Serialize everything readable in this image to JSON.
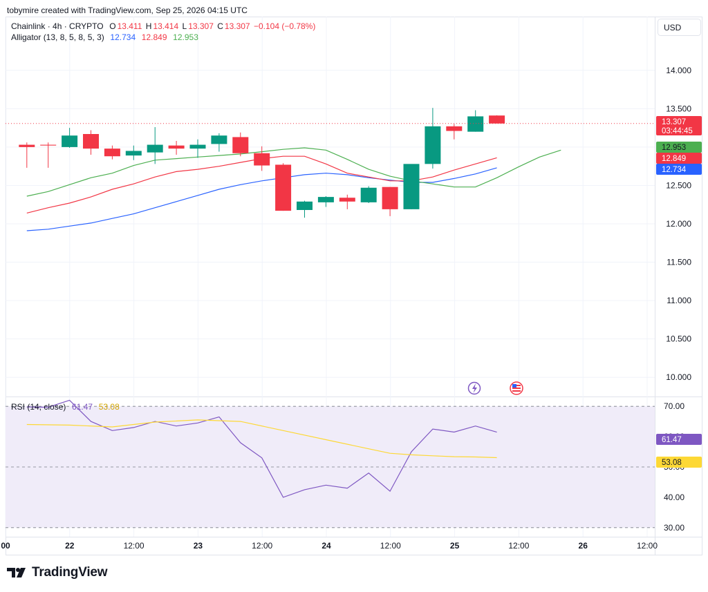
{
  "header": {
    "credit": "tobymire created with TradingView.com, Sep 25, 2026 04:15 UTC"
  },
  "legend": {
    "symbol": "Chainlink · 4h · CRYPTO",
    "o_label": "O",
    "o": "13.411",
    "h_label": "H",
    "h": "13.414",
    "l_label": "L",
    "l": "13.307",
    "c_label": "C",
    "c": "13.307",
    "change": "−0.104 (−0.78%)",
    "alligator_label": "Alligator (13, 8, 5, 8, 5, 3)",
    "jaw": "12.734",
    "teeth": "12.849",
    "lips": "12.953",
    "rsi_label": "RSI (14, close)",
    "rsi": "61.47",
    "rsi_ma": "53.08"
  },
  "currency": "USD",
  "price_tags": {
    "last": "13.307",
    "countdown": "03:44:45",
    "lips": "12.953",
    "teeth": "12.849",
    "jaw": "12.734",
    "rsi": "61.47",
    "rsi_ma": "53.08"
  },
  "colors": {
    "up": "#089981",
    "down": "#f23645",
    "jaw": "#2962ff",
    "teeth": "#f23645",
    "lips": "#4caf50",
    "rsi": "#7e57c2",
    "rsi_ma": "#fdd835",
    "rsi_band": "#f0ecf9"
  },
  "logo": {
    "text": "TradingView"
  },
  "chart_data": [
    {
      "type": "candlestick",
      "title": "Chainlink · 4h · CRYPTO",
      "ylim": [
        9.75,
        14.7
      ],
      "y_ticks": [
        "14.000",
        "13.500",
        "13.000",
        "12.500",
        "12.000",
        "11.500",
        "11.000",
        "10.500",
        "10.000"
      ],
      "x_ticks": [
        "00",
        "22",
        "12:00",
        "23",
        "12:00",
        "24",
        "12:00",
        "25",
        "12:00",
        "26",
        "12:00"
      ],
      "candles": [
        {
          "o": 13.03,
          "h": 13.06,
          "l": 12.73,
          "c": 13.0
        },
        {
          "o": 13.03,
          "h": 13.06,
          "l": 12.73,
          "c": 13.02
        },
        {
          "o": 13.0,
          "h": 13.25,
          "l": 12.99,
          "c": 13.15
        },
        {
          "o": 13.17,
          "h": 13.22,
          "l": 12.9,
          "c": 12.98
        },
        {
          "o": 12.98,
          "h": 13.02,
          "l": 12.84,
          "c": 12.88
        },
        {
          "o": 12.89,
          "h": 13.02,
          "l": 12.83,
          "c": 12.95
        },
        {
          "o": 12.93,
          "h": 13.26,
          "l": 12.78,
          "c": 13.03
        },
        {
          "o": 13.02,
          "h": 13.08,
          "l": 12.9,
          "c": 12.98
        },
        {
          "o": 12.98,
          "h": 13.1,
          "l": 12.86,
          "c": 13.03
        },
        {
          "o": 13.04,
          "h": 13.18,
          "l": 12.94,
          "c": 13.15
        },
        {
          "o": 13.13,
          "h": 13.19,
          "l": 12.88,
          "c": 12.92
        },
        {
          "o": 12.92,
          "h": 13.01,
          "l": 12.69,
          "c": 12.76
        },
        {
          "o": 12.77,
          "h": 12.79,
          "l": 12.17,
          "c": 12.17
        },
        {
          "o": 12.18,
          "h": 12.3,
          "l": 12.08,
          "c": 12.29
        },
        {
          "o": 12.28,
          "h": 12.36,
          "l": 12.22,
          "c": 12.35
        },
        {
          "o": 12.34,
          "h": 12.38,
          "l": 12.19,
          "c": 12.29
        },
        {
          "o": 12.28,
          "h": 12.49,
          "l": 12.27,
          "c": 12.47
        },
        {
          "o": 12.48,
          "h": 12.48,
          "l": 12.1,
          "c": 12.19
        },
        {
          "o": 12.19,
          "h": 12.77,
          "l": 12.19,
          "c": 12.78
        },
        {
          "o": 12.78,
          "h": 13.51,
          "l": 12.72,
          "c": 13.27
        },
        {
          "o": 13.27,
          "h": 13.3,
          "l": 13.1,
          "c": 13.21
        },
        {
          "o": 13.2,
          "h": 13.48,
          "l": 13.2,
          "c": 13.4
        },
        {
          "o": 13.411,
          "h": 13.414,
          "l": 13.307,
          "c": 13.307
        }
      ],
      "last_price": 13.307,
      "series": [
        {
          "name": "Jaw",
          "values": [
            [
              0,
              11.91
            ],
            [
              2,
              11.93
            ],
            [
              4,
              11.97
            ],
            [
              6,
              12.01
            ],
            [
              8,
              12.07
            ],
            [
              10,
              12.13
            ],
            [
              12,
              12.21
            ],
            [
              14,
              12.29
            ],
            [
              16,
              12.37
            ],
            [
              18,
              12.45
            ],
            [
              20,
              12.51
            ],
            [
              22,
              12.56
            ],
            [
              24,
              12.6
            ],
            [
              26,
              12.64
            ],
            [
              28,
              12.66
            ],
            [
              30,
              12.64
            ],
            [
              32,
              12.6
            ],
            [
              34,
              12.57
            ],
            [
              36,
              12.54
            ],
            [
              38,
              12.54
            ],
            [
              40,
              12.59
            ],
            [
              42,
              12.65
            ],
            [
              44,
              12.73
            ]
          ]
        },
        {
          "name": "Teeth",
          "values": [
            [
              0,
              12.14
            ],
            [
              2,
              12.21
            ],
            [
              4,
              12.27
            ],
            [
              6,
              12.35
            ],
            [
              8,
              12.45
            ],
            [
              10,
              12.52
            ],
            [
              12,
              12.61
            ],
            [
              14,
              12.68
            ],
            [
              16,
              12.71
            ],
            [
              18,
              12.75
            ],
            [
              20,
              12.8
            ],
            [
              22,
              12.85
            ],
            [
              24,
              12.88
            ],
            [
              26,
              12.88
            ],
            [
              28,
              12.78
            ],
            [
              30,
              12.66
            ],
            [
              32,
              12.61
            ],
            [
              34,
              12.56
            ],
            [
              36,
              12.56
            ],
            [
              38,
              12.61
            ],
            [
              40,
              12.7
            ],
            [
              42,
              12.78
            ],
            [
              44,
              12.86
            ]
          ]
        },
        {
          "name": "Lips",
          "values": [
            [
              0,
              12.36
            ],
            [
              2,
              12.42
            ],
            [
              4,
              12.51
            ],
            [
              6,
              12.6
            ],
            [
              8,
              12.66
            ],
            [
              10,
              12.76
            ],
            [
              12,
              12.83
            ],
            [
              14,
              12.85
            ],
            [
              16,
              12.87
            ],
            [
              18,
              12.89
            ],
            [
              20,
              12.91
            ],
            [
              22,
              12.94
            ],
            [
              24,
              12.97
            ],
            [
              26,
              12.99
            ],
            [
              28,
              12.96
            ],
            [
              30,
              12.84
            ],
            [
              32,
              12.71
            ],
            [
              34,
              12.62
            ],
            [
              36,
              12.56
            ],
            [
              38,
              12.52
            ],
            [
              40,
              12.48
            ],
            [
              42,
              12.48
            ],
            [
              44,
              12.6
            ],
            [
              46,
              12.74
            ],
            [
              48,
              12.87
            ],
            [
              50,
              12.96
            ]
          ]
        }
      ]
    },
    {
      "type": "line",
      "title": "RSI (14, close)",
      "ylim": [
        27,
        73
      ],
      "y_ticks": [
        "70.00",
        "60.00",
        "50.00",
        "40.00",
        "30.00"
      ],
      "bands": [
        30,
        50,
        70
      ],
      "series": [
        {
          "name": "RSI",
          "values": [
            [
              0,
              69.8
            ],
            [
              1,
              69.7
            ],
            [
              2,
              72
            ],
            [
              3,
              65
            ],
            [
              4,
              62
            ],
            [
              5,
              63
            ],
            [
              6,
              65
            ],
            [
              7,
              63.5
            ],
            [
              8,
              64.5
            ],
            [
              9,
              66.5
            ],
            [
              10,
              58
            ],
            [
              11,
              53
            ],
            [
              12,
              40
            ],
            [
              13,
              42.5
            ],
            [
              14,
              44
            ],
            [
              15,
              43
            ],
            [
              16,
              48
            ],
            [
              17,
              42
            ],
            [
              18,
              55
            ],
            [
              19,
              62.5
            ],
            [
              20,
              61.5
            ],
            [
              21,
              63.5
            ],
            [
              22,
              61.47
            ]
          ]
        },
        {
          "name": "RSI-based MA",
          "values": [
            [
              0,
              64
            ],
            [
              2,
              63.8
            ],
            [
              4,
              63.2
            ],
            [
              6,
              64.8
            ],
            [
              8,
              65.5
            ],
            [
              10,
              65
            ],
            [
              12,
              62
            ],
            [
              14,
              59
            ],
            [
              16,
              56
            ],
            [
              17,
              54.5
            ],
            [
              18,
              54
            ],
            [
              19,
              53.7
            ],
            [
              20,
              53.4
            ],
            [
              21,
              53.3
            ],
            [
              22,
              53.08
            ]
          ]
        }
      ]
    }
  ]
}
